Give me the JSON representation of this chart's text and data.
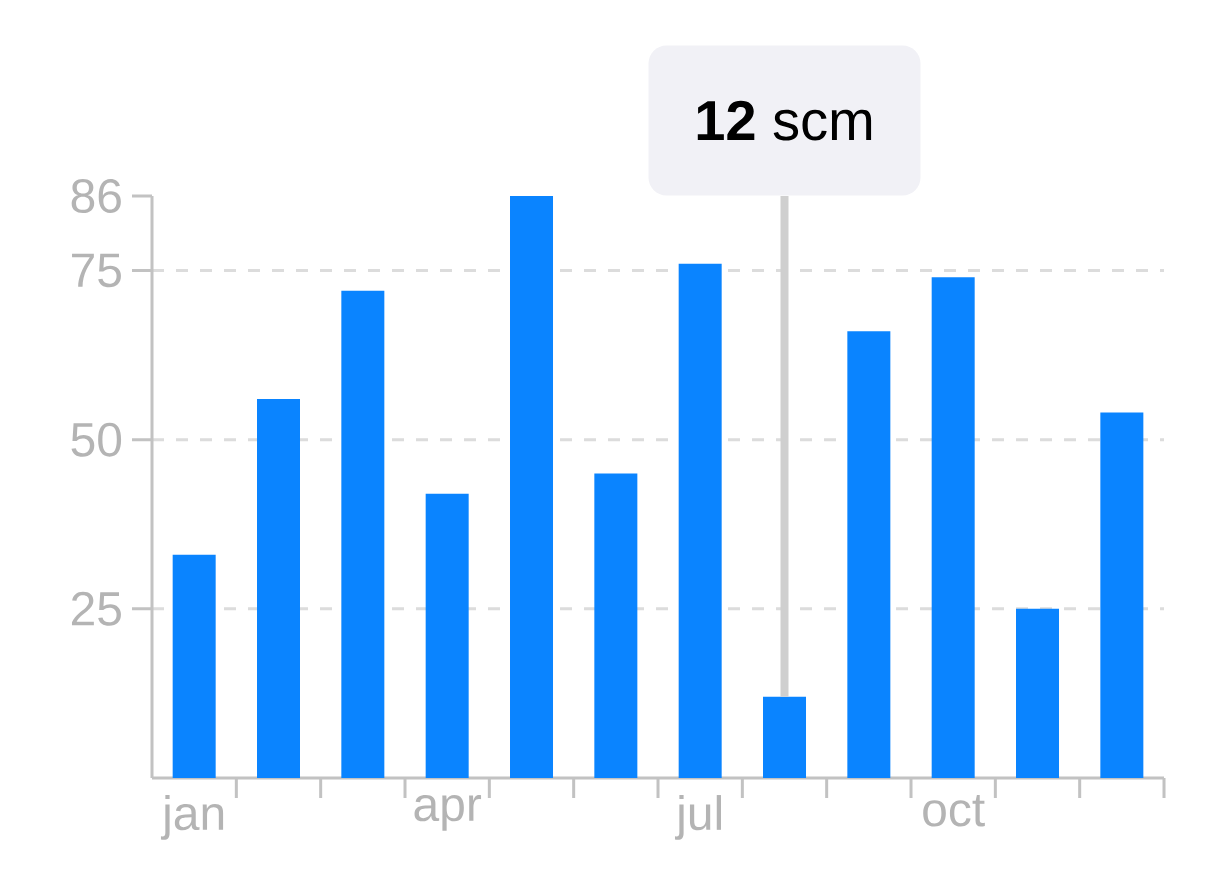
{
  "chart_data": {
    "type": "bar",
    "categories": [
      "jan",
      null,
      null,
      "apr",
      null,
      null,
      "jul",
      null,
      null,
      "oct",
      null,
      null
    ],
    "values": [
      33,
      56,
      72,
      42,
      86,
      45,
      76,
      12,
      66,
      74,
      25,
      54
    ],
    "color": "#0a84ff",
    "ylim": [
      0,
      86
    ],
    "yticks": [
      25,
      50,
      75,
      86
    ],
    "grid": "y",
    "annotations": [
      {
        "text": "**12** scm",
        "y": 12
      }
    ]
  }
}
